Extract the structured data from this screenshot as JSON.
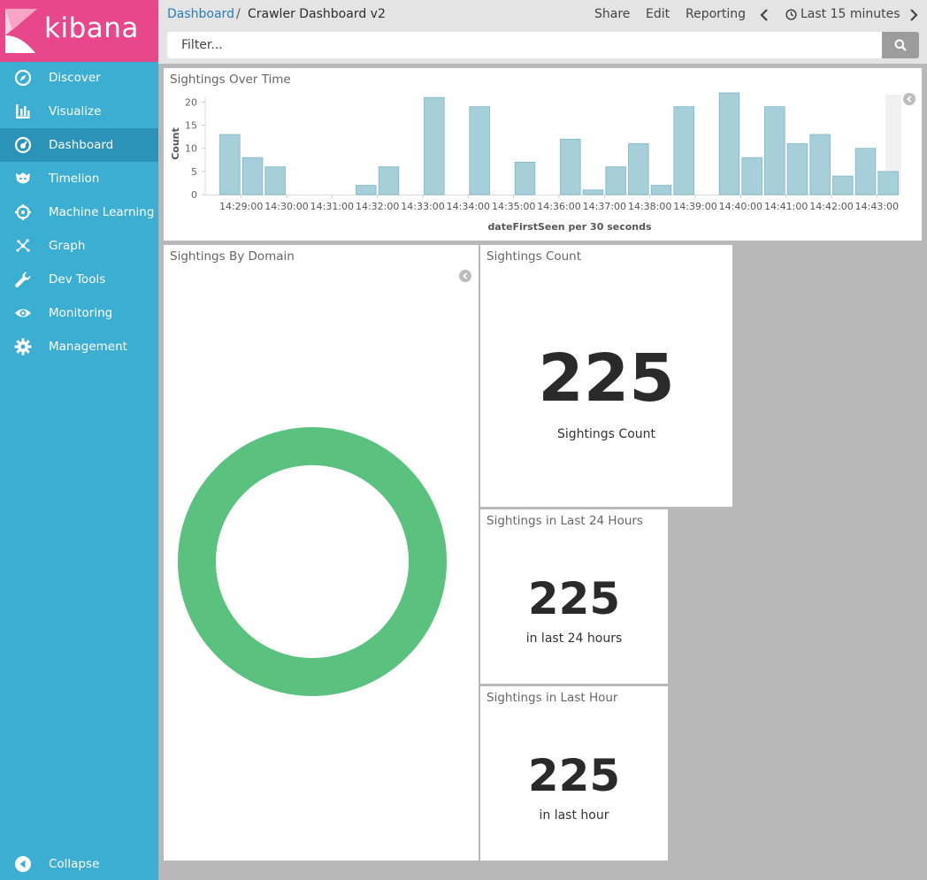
{
  "brand": {
    "name": "kibana"
  },
  "sidebar": {
    "items": [
      {
        "label": "Discover",
        "icon": "compass-icon",
        "active": false
      },
      {
        "label": "Visualize",
        "icon": "bar-chart-icon",
        "active": false
      },
      {
        "label": "Dashboard",
        "icon": "dashboard-icon",
        "active": true
      },
      {
        "label": "Timelion",
        "icon": "timelion-icon",
        "active": false
      },
      {
        "label": "Machine Learning",
        "icon": "machine-learning-icon",
        "active": false
      },
      {
        "label": "Graph",
        "icon": "graph-icon",
        "active": false
      },
      {
        "label": "Dev Tools",
        "icon": "wrench-icon",
        "active": false
      },
      {
        "label": "Monitoring",
        "icon": "eye-icon",
        "active": false
      },
      {
        "label": "Management",
        "icon": "gear-icon",
        "active": false
      }
    ],
    "collapse_label": "Collapse"
  },
  "header": {
    "breadcrumb_link": "Dashboard",
    "breadcrumb_separator": "/",
    "breadcrumb_current": "Crawler Dashboard v2",
    "share_label": "Share",
    "edit_label": "Edit",
    "reporting_label": "Reporting",
    "time_range_label": "Last 15 minutes",
    "filter_placeholder": "Filter..."
  },
  "colors": {
    "sidebar": "#3caed2",
    "sidebar_active": "#2a93b7",
    "brand": "#e8488b",
    "bar": "#a6cfda",
    "donut": "#5bc17f"
  },
  "panels": {
    "over_time": {
      "title": "Sightings Over Time"
    },
    "by_domain": {
      "title": "Sightings By Domain"
    },
    "count": {
      "title": "Sightings Count",
      "value": "225",
      "label": "Sightings Count"
    },
    "last_24h": {
      "title": "Sightings in Last 24 Hours",
      "value": "225",
      "label": "in last 24 hours"
    },
    "last_hour": {
      "title": "Sightings in Last Hour",
      "value": "225",
      "label": "in last hour"
    }
  },
  "chart_data": [
    {
      "type": "bar",
      "ylabel": "Count",
      "xlabel": "dateFirstSeen per 30 seconds",
      "yticks": [
        0,
        5,
        10,
        15,
        20
      ],
      "ylim": [
        0,
        22
      ],
      "xticks": [
        "14:29:00",
        "14:30:00",
        "14:31:00",
        "14:32:00",
        "14:33:00",
        "14:34:00",
        "14:35:00",
        "14:36:00",
        "14:37:00",
        "14:38:00",
        "14:39:00",
        "14:40:00",
        "14:41:00",
        "14:42:00",
        "14:43:00"
      ],
      "x": [
        "14:28:30",
        "14:29:00",
        "14:29:30",
        "14:30:00",
        "14:30:30",
        "14:31:00",
        "14:31:30",
        "14:32:00",
        "14:32:30",
        "14:33:00",
        "14:33:30",
        "14:34:00",
        "14:34:30",
        "14:35:00",
        "14:35:30",
        "14:36:00",
        "14:36:30",
        "14:37:00",
        "14:37:30",
        "14:38:00",
        "14:38:30",
        "14:39:00",
        "14:39:30",
        "14:40:00",
        "14:40:30",
        "14:41:00",
        "14:41:30",
        "14:42:00",
        "14:42:30",
        "14:43:00"
      ],
      "values": [
        13,
        8,
        6,
        0,
        0,
        0,
        2,
        6,
        0,
        21,
        0,
        19,
        0,
        7,
        0,
        12,
        1,
        6,
        11,
        2,
        19,
        0,
        22,
        8,
        19,
        11,
        13,
        4,
        10,
        5
      ],
      "grid": false,
      "color": "#a6cfda"
    },
    {
      "type": "pie",
      "donut": true,
      "values": [
        225
      ],
      "color": "#5bc17f"
    }
  ]
}
